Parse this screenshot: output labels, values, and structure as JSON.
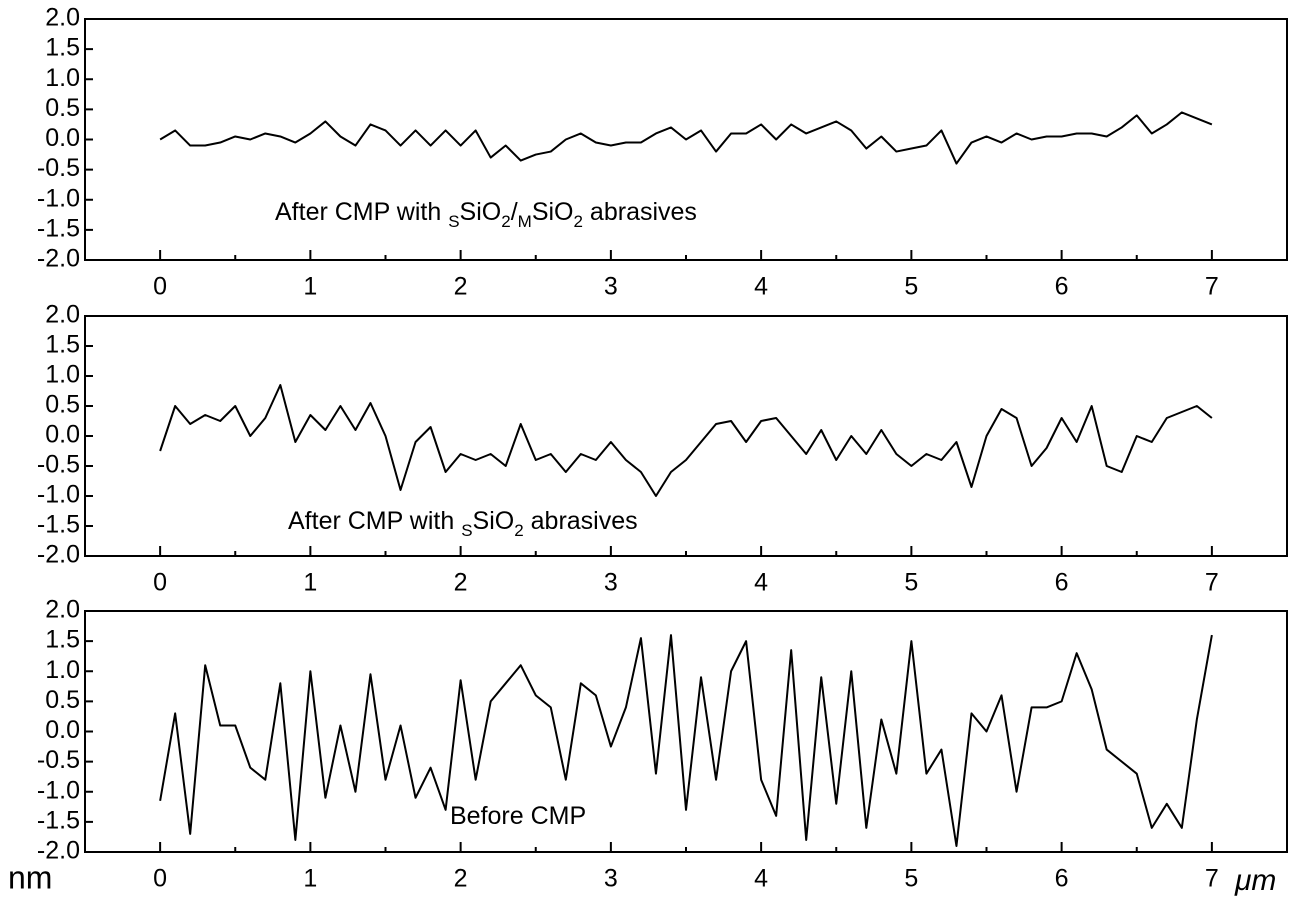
{
  "chart_data": [
    {
      "type": "line",
      "annotation_parts": [
        "After CMP with ",
        "S",
        "SiO",
        "2",
        "/",
        "M",
        "SiO",
        "2",
        " abrasives"
      ],
      "xlim": [
        -0.5,
        7.5
      ],
      "xticks": [
        0,
        1,
        2,
        3,
        4,
        5,
        6,
        7
      ],
      "ylim": [
        -2,
        2
      ],
      "yticks": [
        {
          "value": -2,
          "label": "-2.0"
        },
        -1.5,
        {
          "value": -1,
          "label": "-1.0"
        },
        -0.5,
        {
          "value": 0,
          "label": "0.0"
        },
        0.5,
        {
          "value": 1,
          "label": "1.0"
        },
        1.5,
        {
          "value": 2,
          "label": "2.0"
        }
      ],
      "x": [
        0,
        0.1,
        0.2,
        0.3,
        0.4,
        0.5,
        0.6,
        0.7,
        0.8,
        0.9,
        1,
        1.1,
        1.2,
        1.3,
        1.4,
        1.5,
        1.6,
        1.7,
        1.8,
        1.9,
        2,
        2.1,
        2.2,
        2.3,
        2.4,
        2.5,
        2.6,
        2.7,
        2.8,
        2.9,
        3,
        3.1,
        3.2,
        3.3,
        3.4,
        3.5,
        3.6,
        3.7,
        3.8,
        3.9,
        4,
        4.1,
        4.2,
        4.3,
        4.4,
        4.5,
        4.6,
        4.7,
        4.8,
        4.9,
        5,
        5.1,
        5.2,
        5.3,
        5.4,
        5.5,
        5.6,
        5.7,
        5.8,
        5.9,
        6,
        6.1,
        6.2,
        6.3,
        6.4,
        6.5,
        6.6,
        6.7,
        6.8,
        6.9,
        7
      ],
      "series": [
        {
          "color": "#000000",
          "values": [
            0,
            0.15,
            -0.1,
            -0.1,
            -0.05,
            0.05,
            0,
            0.1,
            0.05,
            -0.05,
            0.1,
            0.3,
            0.05,
            -0.1,
            0.25,
            0.15,
            -0.1,
            0.15,
            -0.1,
            0.15,
            -0.1,
            0.15,
            -0.3,
            -0.1,
            -0.35,
            -0.25,
            -0.2,
            0,
            0.1,
            -0.05,
            -0.1,
            -0.05,
            -0.05,
            0.1,
            0.2,
            0,
            0.15,
            -0.2,
            0.1,
            0.1,
            0.25,
            0,
            0.25,
            0.1,
            0.2,
            0.3,
            0.15,
            -0.15,
            0.05,
            -0.2,
            -0.15,
            -0.1,
            0.15,
            -0.4,
            -0.05,
            0.05,
            -0.05,
            0.1,
            0,
            0.05,
            0.05,
            0.1,
            0.1,
            0.05,
            0.2,
            0.4,
            0.1,
            0.25,
            0.45,
            0.35,
            0.25
          ]
        }
      ]
    },
    {
      "type": "line",
      "annotation_parts": [
        "After CMP with ",
        "S",
        "SiO",
        "2",
        " abrasives"
      ],
      "xlim": [
        -0.5,
        7.5
      ],
      "xticks": [
        0,
        1,
        2,
        3,
        4,
        5,
        6,
        7
      ],
      "ylim": [
        -2,
        2
      ],
      "yticks": [
        {
          "value": -2,
          "label": "-2.0"
        },
        -1.5,
        {
          "value": -1,
          "label": "-1.0"
        },
        -0.5,
        {
          "value": 0,
          "label": "0.0"
        },
        0.5,
        {
          "value": 1,
          "label": "1.0"
        },
        1.5,
        {
          "value": 2,
          "label": "2.0"
        }
      ],
      "x": [
        0,
        0.1,
        0.2,
        0.3,
        0.4,
        0.5,
        0.6,
        0.7,
        0.8,
        0.9,
        1,
        1.1,
        1.2,
        1.3,
        1.4,
        1.5,
        1.6,
        1.7,
        1.8,
        1.9,
        2,
        2.1,
        2.2,
        2.3,
        2.4,
        2.5,
        2.6,
        2.7,
        2.8,
        2.9,
        3,
        3.1,
        3.2,
        3.3,
        3.4,
        3.5,
        3.6,
        3.7,
        3.8,
        3.9,
        4,
        4.1,
        4.2,
        4.3,
        4.4,
        4.5,
        4.6,
        4.7,
        4.8,
        4.9,
        5,
        5.1,
        5.2,
        5.3,
        5.4,
        5.5,
        5.6,
        5.7,
        5.8,
        5.9,
        6,
        6.1,
        6.2,
        6.3,
        6.4,
        6.5,
        6.6,
        6.7,
        6.8,
        6.9,
        7
      ],
      "series": [
        {
          "color": "#000000",
          "values": [
            -0.25,
            0.5,
            0.2,
            0.35,
            0.25,
            0.5,
            0,
            0.3,
            0.85,
            -0.1,
            0.35,
            0.1,
            0.5,
            0.1,
            0.55,
            0,
            -0.9,
            -0.1,
            0.15,
            -0.6,
            -0.3,
            -0.4,
            -0.3,
            -0.5,
            0.2,
            -0.4,
            -0.3,
            -0.6,
            -0.3,
            -0.4,
            -0.1,
            -0.4,
            -0.6,
            -1,
            -0.6,
            -0.4,
            -0.1,
            0.2,
            0.25,
            -0.1,
            0.25,
            0.3,
            0,
            -0.3,
            0.1,
            -0.4,
            0,
            -0.3,
            0.1,
            -0.3,
            -0.5,
            -0.3,
            -0.4,
            -0.1,
            -0.85,
            0,
            0.45,
            0.3,
            -0.5,
            -0.2,
            0.3,
            -0.1,
            0.5,
            -0.5,
            -0.6,
            0,
            -0.1,
            0.3,
            0.4,
            0.5,
            0.3
          ]
        }
      ]
    },
    {
      "type": "line",
      "annotation_parts": [
        "Before CMP"
      ],
      "ylabel": "nm",
      "xlabel": "μm",
      "xlim": [
        -0.5,
        7.5
      ],
      "xticks": [
        0,
        1,
        2,
        3,
        4,
        5,
        6,
        7
      ],
      "ylim": [
        -2,
        2
      ],
      "yticks": [
        {
          "value": -2,
          "label": "-2.0"
        },
        -1.5,
        {
          "value": -1,
          "label": "-1.0"
        },
        -0.5,
        {
          "value": 0,
          "label": "0.0"
        },
        0.5,
        {
          "value": 1,
          "label": "1.0"
        },
        1.5,
        {
          "value": 2,
          "label": "2.0"
        }
      ],
      "x": [
        0,
        0.1,
        0.2,
        0.3,
        0.4,
        0.5,
        0.6,
        0.7,
        0.8,
        0.9,
        1,
        1.1,
        1.2,
        1.3,
        1.4,
        1.5,
        1.6,
        1.7,
        1.8,
        1.9,
        2,
        2.1,
        2.2,
        2.3,
        2.4,
        2.5,
        2.6,
        2.7,
        2.8,
        2.9,
        3,
        3.1,
        3.2,
        3.3,
        3.4,
        3.5,
        3.6,
        3.7,
        3.8,
        3.9,
        4,
        4.1,
        4.2,
        4.3,
        4.4,
        4.5,
        4.6,
        4.7,
        4.8,
        4.9,
        5,
        5.1,
        5.2,
        5.3,
        5.4,
        5.5,
        5.6,
        5.7,
        5.8,
        5.9,
        6,
        6.1,
        6.2,
        6.3,
        6.4,
        6.5,
        6.6,
        6.7,
        6.8,
        6.9,
        7
      ],
      "series": [
        {
          "color": "#000000",
          "values": [
            -1.15,
            0.3,
            -1.7,
            1.1,
            0.1,
            0.1,
            -0.6,
            -0.8,
            0.8,
            -1.8,
            1,
            -1.1,
            0.1,
            -1,
            0.95,
            -0.8,
            0.1,
            -1.1,
            -0.6,
            -1.3,
            0.85,
            -0.8,
            0.5,
            0.8,
            1.1,
            0.6,
            0.4,
            -0.8,
            0.8,
            0.6,
            -0.25,
            0.4,
            1.55,
            -0.7,
            1.6,
            -1.3,
            0.9,
            -0.8,
            1,
            1.5,
            -0.8,
            -1.4,
            1.35,
            -1.8,
            0.9,
            -1.2,
            1,
            -1.6,
            0.2,
            -0.7,
            1.5,
            -0.7,
            -0.3,
            -1.9,
            0.3,
            0,
            0.6,
            -1,
            0.4,
            0.4,
            0.5,
            1.3,
            0.7,
            -0.3,
            -0.5,
            -0.7,
            -1.6,
            -1.2,
            -1.6,
            0.2,
            1.6
          ]
        }
      ]
    }
  ]
}
